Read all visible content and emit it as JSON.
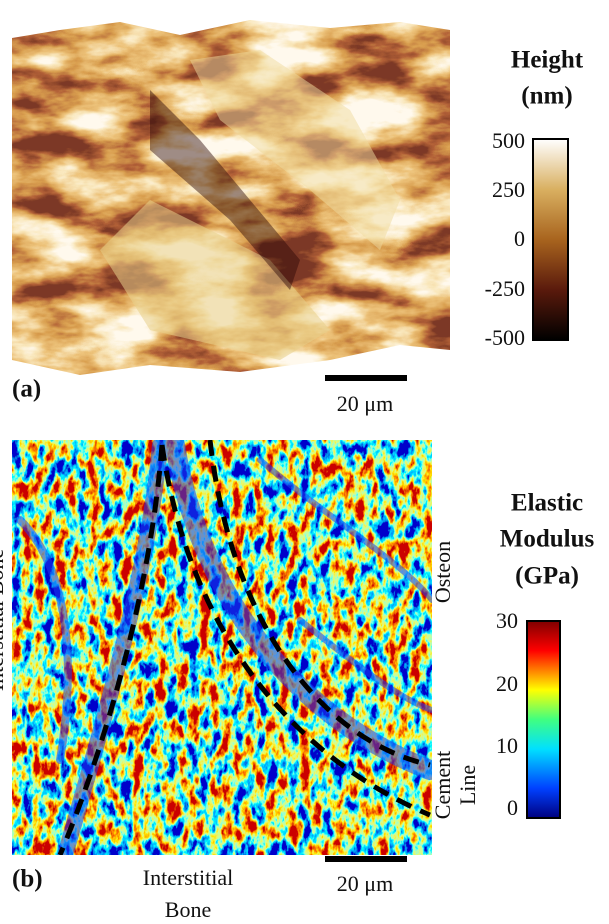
{
  "panel_a": {
    "label": "(a)",
    "colorbar_title": [
      "Height",
      "(nm)"
    ],
    "colorbar_ticks": [
      "500",
      "250",
      "0",
      "-250",
      "-500"
    ],
    "scale_bar": "20 μm"
  },
  "panel_b": {
    "label": "(b)",
    "colorbar_title": [
      "Elastic",
      "Modulus",
      "(GPa)"
    ],
    "colorbar_ticks": [
      "30",
      "20",
      "10",
      "0"
    ],
    "scale_bar": "20 μm",
    "annotations": {
      "left": "Interstitial Bone",
      "bottom": [
        "Interstitial",
        "Bone"
      ],
      "right_top": "Osteon",
      "right_bottom": [
        "Cement",
        "Line"
      ]
    }
  }
}
